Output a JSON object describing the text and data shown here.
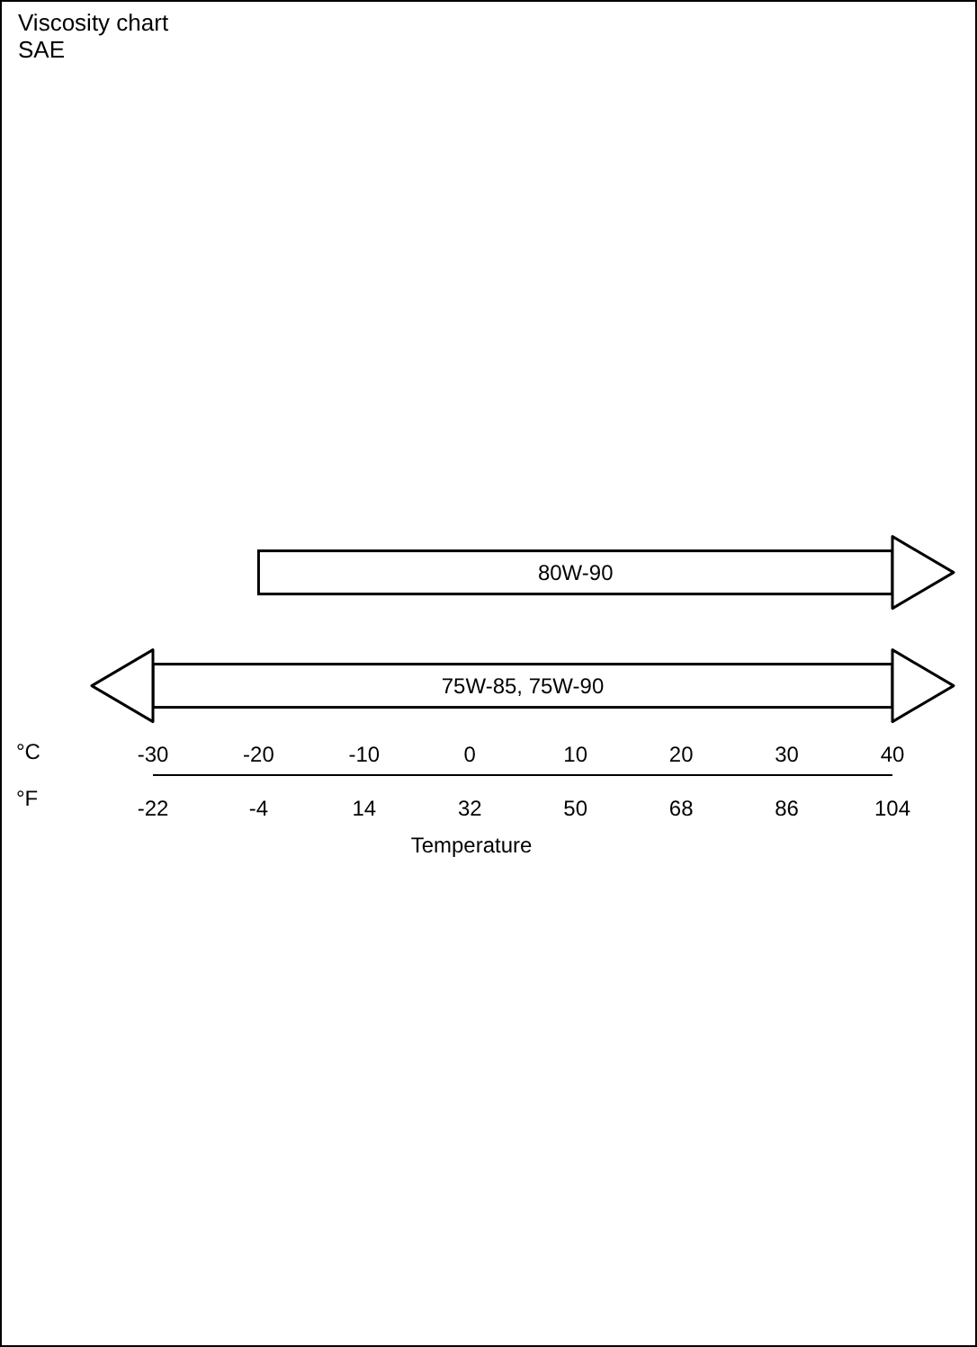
{
  "chart_data": {
    "type": "bar",
    "title": "Viscosity chart",
    "subtitle": "SAE",
    "orientation": "horizontal",
    "categories": [
      "80W-90",
      "75W-85, 75W-90"
    ],
    "base": [
      -20,
      -30
    ],
    "values": [
      60,
      70
    ],
    "color": "#ffffff",
    "xlim": [
      -30,
      40
    ],
    "xticks": [
      -30,
      -20,
      -10,
      0,
      10,
      20,
      30,
      40
    ],
    "x2lim": [
      -22,
      104
    ],
    "x2ticks": [
      -22,
      -4,
      14,
      32,
      50,
      68,
      86,
      104
    ],
    "xlabel": "Temperature",
    "annotations": [
      "°C",
      "°F"
    ],
    "grid": false,
    "legend": false
  }
}
